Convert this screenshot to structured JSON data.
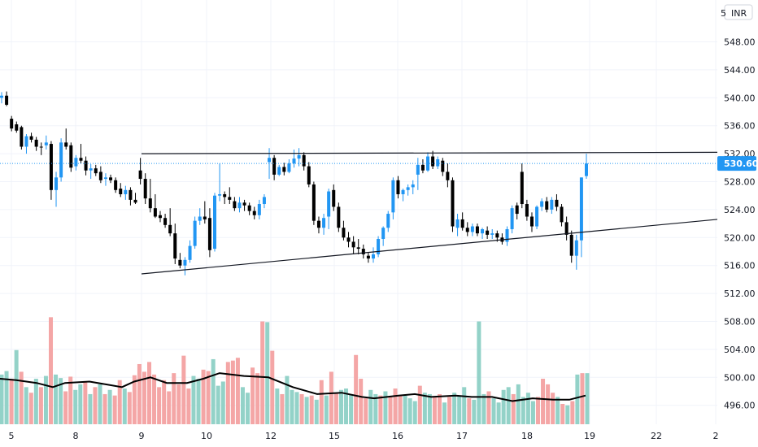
{
  "header": {
    "currency": "INR",
    "currency_partial": "5"
  },
  "colors": {
    "up": "#2196f3",
    "down": "#000000",
    "vol_up": "#93d2c8",
    "vol_down": "#f4a6a6",
    "ma": "#000000",
    "grid": "#f0f3fa",
    "price_line": "#2196f3"
  },
  "chart_data": {
    "type": "candlestick",
    "title": "",
    "ylim": [
      494,
      550
    ],
    "y_ticks": [
      "548.00",
      "544.00",
      "540.00",
      "536.00",
      "532.00",
      "528.00",
      "524.00",
      "520.00",
      "516.00",
      "512.00",
      "508.00",
      "504.00",
      "500.00",
      "496.00"
    ],
    "x_ticks": [
      "5",
      "8",
      "9",
      "10",
      "12",
      "15",
      "16",
      "17",
      "18",
      "19",
      "22",
      "2"
    ],
    "current_price": "530.60",
    "candles": [
      [
        540.0,
        540.8,
        539.2,
        540.3
      ],
      [
        540.3,
        540.9,
        538.8,
        539.0
      ],
      [
        537.0,
        537.4,
        535.2,
        535.6
      ],
      [
        536.2,
        536.6,
        535.0,
        535.3
      ],
      [
        535.8,
        536.0,
        532.6,
        533.0
      ],
      [
        533.0,
        534.8,
        532.0,
        534.5
      ],
      [
        534.5,
        535.0,
        533.6,
        534.0
      ],
      [
        534.0,
        534.4,
        532.4,
        533.0
      ],
      [
        533.0,
        533.6,
        531.8,
        532.9
      ],
      [
        533.2,
        534.6,
        532.6,
        533.6
      ],
      [
        533.4,
        533.8,
        525.4,
        526.8
      ],
      [
        526.8,
        529.4,
        524.4,
        528.6
      ],
      [
        528.6,
        534.2,
        528.0,
        533.6
      ],
      [
        533.6,
        535.6,
        532.6,
        533.0
      ],
      [
        533.2,
        533.6,
        529.4,
        530.0
      ],
      [
        530.2,
        531.8,
        529.6,
        531.4
      ],
      [
        531.4,
        533.4,
        530.6,
        531.0
      ],
      [
        531.0,
        531.6,
        528.9,
        529.6
      ],
      [
        529.6,
        530.5,
        528.4,
        529.9
      ],
      [
        529.9,
        530.4,
        528.8,
        529.2
      ],
      [
        529.4,
        530.2,
        527.8,
        528.2
      ],
      [
        528.4,
        529.2,
        527.4,
        528.6
      ],
      [
        528.6,
        529.0,
        527.8,
        528.2
      ],
      [
        528.2,
        528.6,
        526.4,
        526.8
      ],
      [
        527.0,
        527.8,
        525.8,
        526.2
      ],
      [
        526.2,
        527.4,
        525.4,
        526.8
      ],
      [
        526.8,
        527.2,
        524.6,
        525.4
      ],
      [
        525.4,
        526.4,
        524.8,
        525.0
      ],
      [
        529.6,
        531.4,
        527.6,
        528.4
      ],
      [
        528.4,
        529.2,
        524.8,
        525.6
      ],
      [
        525.6,
        528.4,
        523.6,
        524.2
      ],
      [
        524.2,
        526.2,
        522.8,
        523.0
      ],
      [
        523.2,
        523.8,
        522.2,
        522.8
      ],
      [
        522.8,
        523.4,
        521.4,
        521.8
      ],
      [
        521.8,
        524.2,
        520.2,
        520.6
      ],
      [
        520.6,
        522.0,
        516.2,
        517.0
      ],
      [
        516.8,
        517.8,
        515.6,
        516.0
      ],
      [
        516.0,
        517.2,
        514.6,
        516.8
      ],
      [
        516.8,
        519.6,
        516.4,
        518.8
      ],
      [
        518.8,
        523.0,
        518.4,
        522.4
      ],
      [
        522.4,
        524.2,
        521.8,
        523.0
      ],
      [
        523.0,
        525.2,
        522.0,
        522.6
      ],
      [
        522.8,
        524.2,
        517.2,
        518.2
      ],
      [
        518.4,
        526.4,
        518.0,
        526.0
      ],
      [
        526.0,
        530.6,
        525.2,
        526.2
      ],
      [
        526.2,
        526.6,
        524.8,
        525.8
      ],
      [
        525.8,
        527.2,
        524.8,
        525.4
      ],
      [
        525.2,
        525.8,
        523.8,
        524.2
      ],
      [
        524.2,
        525.8,
        523.6,
        525.0
      ],
      [
        525.0,
        525.4,
        523.8,
        524.6
      ],
      [
        524.6,
        525.0,
        523.2,
        523.8
      ],
      [
        523.8,
        524.4,
        522.6,
        523.2
      ],
      [
        523.2,
        525.4,
        522.6,
        524.8
      ],
      [
        524.8,
        526.2,
        524.2,
        525.8
      ],
      [
        530.8,
        532.8,
        528.4,
        531.4
      ],
      [
        531.4,
        531.8,
        528.2,
        529.0
      ],
      [
        529.0,
        530.4,
        528.8,
        530.1
      ],
      [
        530.1,
        530.7,
        528.9,
        529.4
      ],
      [
        529.4,
        531.2,
        529.2,
        530.6
      ],
      [
        530.6,
        532.6,
        530.0,
        531.3
      ],
      [
        531.3,
        532.8,
        530.2,
        531.8
      ],
      [
        531.8,
        532.2,
        529.6,
        530.2
      ],
      [
        530.2,
        530.8,
        527.2,
        527.6
      ],
      [
        527.6,
        528.0,
        521.8,
        522.4
      ],
      [
        522.4,
        523.0,
        520.6,
        521.4
      ],
      [
        521.4,
        523.4,
        520.4,
        522.8
      ],
      [
        523.0,
        527.0,
        521.2,
        526.6
      ],
      [
        526.8,
        527.6,
        523.8,
        524.4
      ],
      [
        524.4,
        525.0,
        520.8,
        521.4
      ],
      [
        521.4,
        522.4,
        519.6,
        520.0
      ],
      [
        520.0,
        520.8,
        518.6,
        519.4
      ],
      [
        519.4,
        520.2,
        517.6,
        518.6
      ],
      [
        518.6,
        519.8,
        517.6,
        518.4
      ],
      [
        518.4,
        519.0,
        517.0,
        517.6
      ],
      [
        517.4,
        517.8,
        516.4,
        517.0
      ],
      [
        517.0,
        518.6,
        516.4,
        517.6
      ],
      [
        517.6,
        520.2,
        517.2,
        519.8
      ],
      [
        519.8,
        521.6,
        518.8,
        521.4
      ],
      [
        521.4,
        523.8,
        520.8,
        523.4
      ],
      [
        523.6,
        528.6,
        522.6,
        528.2
      ],
      [
        528.2,
        528.8,
        525.6,
        526.2
      ],
      [
        526.2,
        527.0,
        525.2,
        526.8
      ],
      [
        526.8,
        527.6,
        526.0,
        527.2
      ],
      [
        527.2,
        528.2,
        526.2,
        527.6
      ],
      [
        529.0,
        531.4,
        526.8,
        530.4
      ],
      [
        530.4,
        531.2,
        529.2,
        529.6
      ],
      [
        529.6,
        532.2,
        529.4,
        531.6
      ],
      [
        531.6,
        532.4,
        529.8,
        530.2
      ],
      [
        530.2,
        531.6,
        529.8,
        531.2
      ],
      [
        531.0,
        531.4,
        528.8,
        529.4
      ],
      [
        529.4,
        530.6,
        527.2,
        528.2
      ],
      [
        528.2,
        528.6,
        520.8,
        521.6
      ],
      [
        521.4,
        523.4,
        520.2,
        522.6
      ],
      [
        522.6,
        523.6,
        521.0,
        521.4
      ],
      [
        521.4,
        522.2,
        520.2,
        520.8
      ],
      [
        520.8,
        522.0,
        520.2,
        521.6
      ],
      [
        521.6,
        522.0,
        520.2,
        520.6
      ],
      [
        520.6,
        521.4,
        519.8,
        521.2
      ],
      [
        521.0,
        521.6,
        519.8,
        520.4
      ],
      [
        520.4,
        521.2,
        519.8,
        520.6
      ],
      [
        520.6,
        521.0,
        519.4,
        520.0
      ],
      [
        520.0,
        520.6,
        519.0,
        519.4
      ],
      [
        519.4,
        521.6,
        518.8,
        521.2
      ],
      [
        521.2,
        524.6,
        520.6,
        524.2
      ],
      [
        524.6,
        525.0,
        522.6,
        523.4
      ],
      [
        529.4,
        530.6,
        524.2,
        524.8
      ],
      [
        524.8,
        525.4,
        522.4,
        523.0
      ],
      [
        523.0,
        523.6,
        520.8,
        521.6
      ],
      [
        521.6,
        524.6,
        521.2,
        524.4
      ],
      [
        524.4,
        525.6,
        523.8,
        525.2
      ],
      [
        525.2,
        525.8,
        523.6,
        524.0
      ],
      [
        524.0,
        525.8,
        523.4,
        525.4
      ],
      [
        525.4,
        526.2,
        523.8,
        524.4
      ],
      [
        524.4,
        524.8,
        521.6,
        522.2
      ],
      [
        522.2,
        523.0,
        519.6,
        520.4
      ],
      [
        520.4,
        521.0,
        516.4,
        517.4
      ],
      [
        517.4,
        520.4,
        515.4,
        519.6
      ],
      [
        519.6,
        528.6,
        517.2,
        528.6
      ],
      [
        528.8,
        532.0,
        528.4,
        530.6
      ]
    ],
    "volume": [
      [
        500.4,
        1
      ],
      [
        500.9,
        1
      ],
      [
        499.8,
        0
      ],
      [
        503.9,
        1
      ],
      [
        500.8,
        0
      ],
      [
        498.6,
        1
      ],
      [
        497.8,
        0
      ],
      [
        499.8,
        1
      ],
      [
        498.6,
        0
      ],
      [
        500.2,
        1
      ],
      [
        508.6,
        0
      ],
      [
        500.4,
        1
      ],
      [
        499.9,
        1
      ],
      [
        498.0,
        0
      ],
      [
        500.1,
        0
      ],
      [
        498.2,
        1
      ],
      [
        499.0,
        1
      ],
      [
        499.4,
        0
      ],
      [
        497.6,
        1
      ],
      [
        498.6,
        0
      ],
      [
        499.0,
        1
      ],
      [
        497.6,
        0
      ],
      [
        498.2,
        1
      ],
      [
        497.4,
        0
      ],
      [
        499.6,
        0
      ],
      [
        498.4,
        1
      ],
      [
        497.9,
        0
      ],
      [
        500.3,
        0
      ],
      [
        501.9,
        0
      ],
      [
        500.8,
        0
      ],
      [
        502.2,
        0
      ],
      [
        500.4,
        0
      ],
      [
        498.6,
        0
      ],
      [
        499.6,
        0
      ],
      [
        498.0,
        0
      ],
      [
        500.6,
        0
      ],
      [
        499.0,
        0
      ],
      [
        503.1,
        0
      ],
      [
        498.4,
        0
      ],
      [
        500.2,
        1
      ],
      [
        499.8,
        1
      ],
      [
        501.1,
        0
      ],
      [
        500.9,
        0
      ],
      [
        502.6,
        1
      ],
      [
        498.8,
        1
      ],
      [
        499.4,
        1
      ],
      [
        502.2,
        0
      ],
      [
        502.4,
        0
      ],
      [
        502.8,
        0
      ],
      [
        498.6,
        1
      ],
      [
        497.8,
        1
      ],
      [
        501.4,
        0
      ],
      [
        500.6,
        0
      ],
      [
        508.0,
        0
      ],
      [
        507.9,
        1
      ],
      [
        503.8,
        0
      ],
      [
        498.4,
        1
      ],
      [
        497.6,
        0
      ],
      [
        500.2,
        1
      ],
      [
        498.2,
        1
      ],
      [
        497.9,
        1
      ],
      [
        497.6,
        0
      ],
      [
        497.2,
        1
      ],
      [
        497.4,
        0
      ],
      [
        496.8,
        1
      ],
      [
        499.6,
        0
      ],
      [
        497.4,
        1
      ],
      [
        500.8,
        0
      ],
      [
        497.8,
        0
      ],
      [
        498.2,
        1
      ],
      [
        498.4,
        1
      ],
      [
        497.6,
        1
      ],
      [
        503.2,
        0
      ],
      [
        499.8,
        0
      ],
      [
        497.0,
        0
      ],
      [
        498.2,
        1
      ],
      [
        497.6,
        1
      ],
      [
        497.4,
        0
      ],
      [
        498.0,
        1
      ],
      [
        497.2,
        0
      ],
      [
        498.4,
        0
      ],
      [
        497.4,
        0
      ],
      [
        497.4,
        1
      ],
      [
        497.0,
        1
      ],
      [
        496.6,
        1
      ],
      [
        498.8,
        0
      ],
      [
        497.8,
        1
      ],
      [
        497.6,
        1
      ],
      [
        497.2,
        0
      ],
      [
        497.6,
        0
      ],
      [
        496.4,
        1
      ],
      [
        497.2,
        0
      ],
      [
        497.8,
        1
      ],
      [
        497.4,
        1
      ],
      [
        498.6,
        1
      ],
      [
        497.0,
        0
      ],
      [
        496.8,
        1
      ],
      [
        508.0,
        1
      ],
      [
        497.6,
        1
      ],
      [
        498.0,
        0
      ],
      [
        497.0,
        1
      ],
      [
        496.4,
        1
      ],
      [
        498.2,
        1
      ],
      [
        498.6,
        1
      ],
      [
        497.6,
        0
      ],
      [
        499.0,
        1
      ],
      [
        497.2,
        1
      ],
      [
        497.8,
        1
      ],
      [
        496.6,
        1
      ],
      [
        497.2,
        0
      ],
      [
        499.8,
        0
      ],
      [
        499.0,
        0
      ],
      [
        497.8,
        0
      ],
      [
        497.2,
        1
      ],
      [
        496.2,
        0
      ],
      [
        496.0,
        1
      ],
      [
        496.6,
        0
      ],
      [
        500.4,
        1
      ],
      [
        500.6,
        0
      ],
      [
        500.6,
        1
      ]
    ],
    "volume_ma": [
      [
        0,
        499.8
      ],
      [
        20,
        499.6
      ],
      [
        45,
        499.2
      ],
      [
        65,
        498.6
      ],
      [
        80,
        499.2
      ],
      [
        110,
        499.4
      ],
      [
        130,
        499.0
      ],
      [
        150,
        498.6
      ],
      [
        165,
        499.4
      ],
      [
        185,
        500.0
      ],
      [
        205,
        499.2
      ],
      [
        230,
        499.2
      ],
      [
        250,
        499.8
      ],
      [
        270,
        500.6
      ],
      [
        300,
        500.2
      ],
      [
        330,
        500.0
      ],
      [
        360,
        498.6
      ],
      [
        390,
        497.6
      ],
      [
        420,
        497.8
      ],
      [
        445,
        497.2
      ],
      [
        460,
        497.0
      ],
      [
        490,
        497.4
      ],
      [
        510,
        497.6
      ],
      [
        530,
        497.2
      ],
      [
        560,
        497.4
      ],
      [
        580,
        497.2
      ],
      [
        605,
        497.2
      ],
      [
        630,
        496.6
      ],
      [
        655,
        497.0
      ],
      [
        680,
        496.8
      ],
      [
        700,
        496.8
      ],
      [
        720,
        497.4
      ]
    ],
    "trendlines": [
      {
        "from": [
          174,
          532.0
        ],
        "to": [
          882,
          532.2
        ]
      },
      {
        "from": [
          174,
          514.8
        ],
        "to": [
          882,
          522.6
        ]
      }
    ]
  }
}
